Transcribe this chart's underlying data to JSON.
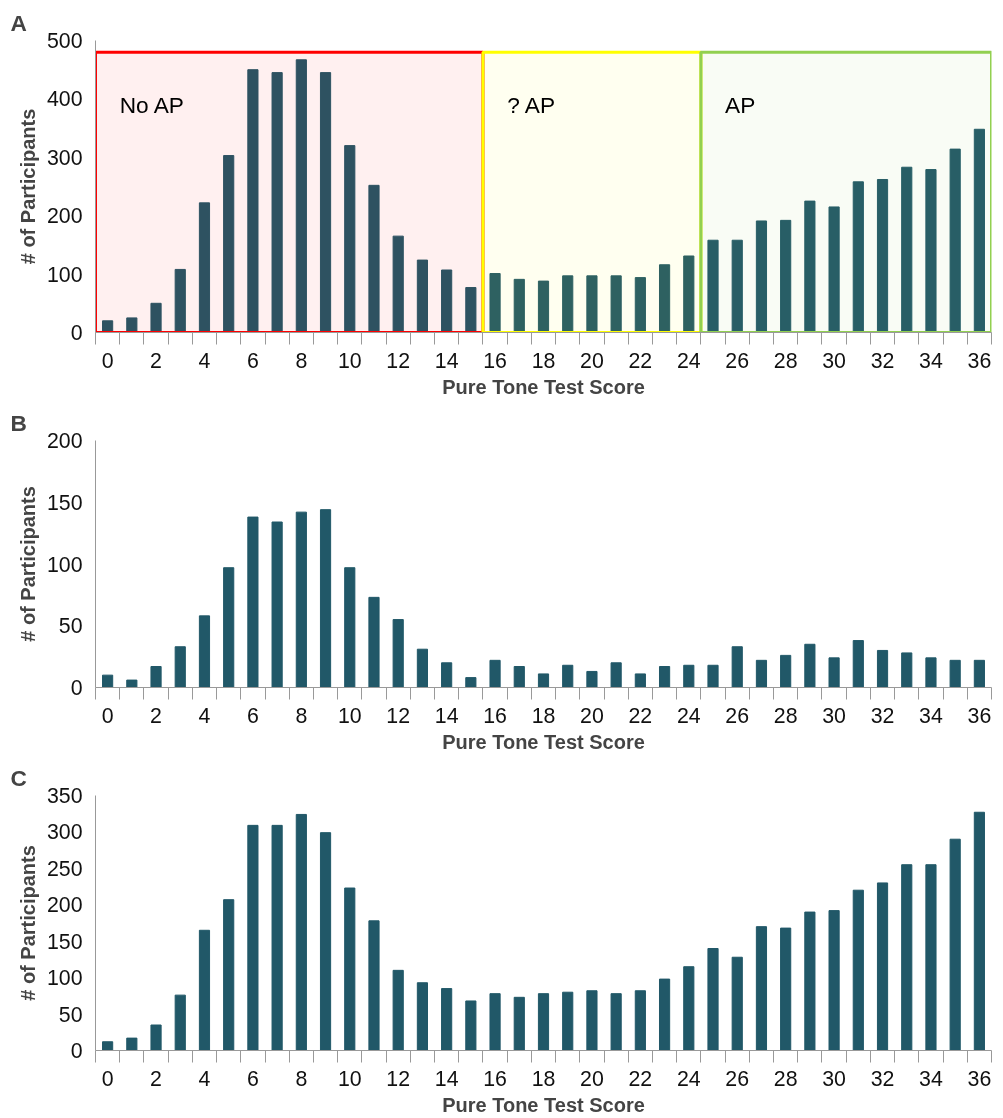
{
  "chart_data": [
    {
      "type": "bar",
      "title": "A",
      "xlabel": "Pure Tone Test Score",
      "ylabel": "# of Participants",
      "x": [
        0,
        1,
        2,
        3,
        4,
        5,
        6,
        7,
        8,
        9,
        10,
        11,
        12,
        13,
        14,
        15,
        16,
        17,
        18,
        19,
        20,
        21,
        22,
        23,
        24,
        25,
        26,
        27,
        28,
        29,
        30,
        31,
        32,
        33,
        34,
        35,
        36
      ],
      "values": [
        20,
        25,
        50,
        108,
        222,
        303,
        450,
        445,
        467,
        445,
        320,
        252,
        165,
        124,
        107,
        77,
        101,
        91,
        88,
        97,
        97,
        97,
        94,
        116,
        131,
        158,
        158,
        191,
        192,
        225,
        215,
        258,
        262,
        283,
        279,
        314,
        348
      ],
      "color": "#215868",
      "xlim": [
        -0.5,
        36.5
      ],
      "xticks": [
        0,
        2,
        4,
        6,
        8,
        10,
        12,
        14,
        16,
        18,
        20,
        22,
        24,
        26,
        28,
        30,
        32,
        34,
        36
      ],
      "ylim": [
        0,
        500
      ],
      "yticks": [
        0,
        100,
        200,
        300,
        400,
        500
      ],
      "bands": [
        {
          "axis": "x",
          "from": -0.5,
          "to": 15.5,
          "label": "No AP",
          "color": "#ff0000"
        },
        {
          "axis": "x",
          "from": 15.5,
          "to": 24.5,
          "label": "? AP",
          "color": "#ffff00"
        },
        {
          "axis": "x",
          "from": 24.5,
          "to": 36.5,
          "label": "AP",
          "color": "#92d050"
        }
      ]
    },
    {
      "type": "bar",
      "title": "B",
      "xlabel": "Pure Tone Test Score",
      "ylabel": "# of Participants",
      "x": [
        0,
        1,
        2,
        3,
        4,
        5,
        6,
        7,
        8,
        9,
        10,
        11,
        12,
        13,
        14,
        15,
        16,
        17,
        18,
        19,
        20,
        21,
        22,
        23,
        24,
        25,
        26,
        27,
        28,
        29,
        30,
        31,
        32,
        33,
        34,
        35,
        36
      ],
      "values": [
        10,
        6,
        17,
        33,
        58,
        97,
        138,
        134,
        142,
        144,
        97,
        73,
        55,
        31,
        20,
        8,
        22,
        17,
        11,
        18,
        13,
        20,
        11,
        17,
        18,
        18,
        33,
        22,
        26,
        35,
        24,
        38,
        30,
        28,
        24,
        22,
        22
      ],
      "color": "#215868",
      "xlim": [
        -0.5,
        36.5
      ],
      "xticks": [
        0,
        2,
        4,
        6,
        8,
        10,
        12,
        14,
        16,
        18,
        20,
        22,
        24,
        26,
        28,
        30,
        32,
        34,
        36
      ],
      "ylim": [
        0,
        200
      ],
      "yticks": [
        0,
        50,
        100,
        150,
        200
      ]
    },
    {
      "type": "bar",
      "title": "C",
      "xlabel": "Pure Tone Test Score",
      "ylabel": "# of Participants",
      "x": [
        0,
        1,
        2,
        3,
        4,
        5,
        6,
        7,
        8,
        9,
        10,
        11,
        12,
        13,
        14,
        15,
        16,
        17,
        18,
        19,
        20,
        21,
        22,
        23,
        24,
        25,
        26,
        27,
        28,
        29,
        30,
        31,
        32,
        33,
        34,
        35,
        36
      ],
      "values": [
        12,
        17,
        35,
        76,
        165,
        207,
        309,
        309,
        324,
        299,
        223,
        178,
        110,
        93,
        85,
        68,
        78,
        73,
        78,
        80,
        82,
        78,
        82,
        98,
        115,
        140,
        128,
        170,
        168,
        190,
        192,
        220,
        230,
        255,
        255,
        290,
        327
      ],
      "color": "#215868",
      "xlim": [
        -0.5,
        36.5
      ],
      "xticks": [
        0,
        2,
        4,
        6,
        8,
        10,
        12,
        14,
        16,
        18,
        20,
        22,
        24,
        26,
        28,
        30,
        32,
        34,
        36
      ],
      "ylim": [
        0,
        350
      ],
      "yticks": [
        0,
        50,
        100,
        150,
        200,
        250,
        300,
        350
      ]
    }
  ]
}
